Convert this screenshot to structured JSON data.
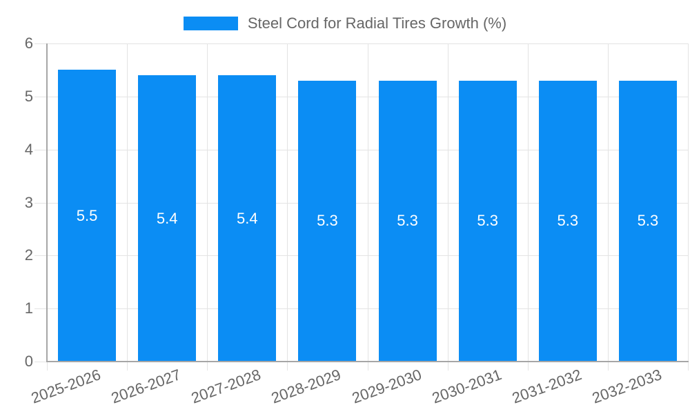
{
  "legend": {
    "label": "Steel Cord for Radial Tires Growth (%)"
  },
  "colors": {
    "bar": "#0b8df4",
    "grid": "#e3e3e3",
    "axis": "#a6a6a6",
    "tick_text": "#666666",
    "value_label": "#ffffff",
    "background": "#ffffff"
  },
  "chart_data": {
    "type": "bar",
    "title": "",
    "series_name": "Steel Cord for Radial Tires Growth (%)",
    "categories": [
      "2025-2026",
      "2026-2027",
      "2027-2028",
      "2028-2029",
      "2029-2030",
      "2030-2031",
      "2031-2032",
      "2032-2033"
    ],
    "values": [
      5.5,
      5.4,
      5.4,
      5.3,
      5.3,
      5.3,
      5.3,
      5.3
    ],
    "value_labels": [
      "5.5",
      "5.4",
      "5.4",
      "5.3",
      "5.3",
      "5.3",
      "5.3",
      "5.3"
    ],
    "xlabel": "",
    "ylabel": "",
    "ylim": [
      0,
      6
    ],
    "yticks": [
      0,
      1,
      2,
      3,
      4,
      5,
      6
    ],
    "grid": true,
    "legend_position": "top",
    "x_label_rotation_deg": -20
  }
}
